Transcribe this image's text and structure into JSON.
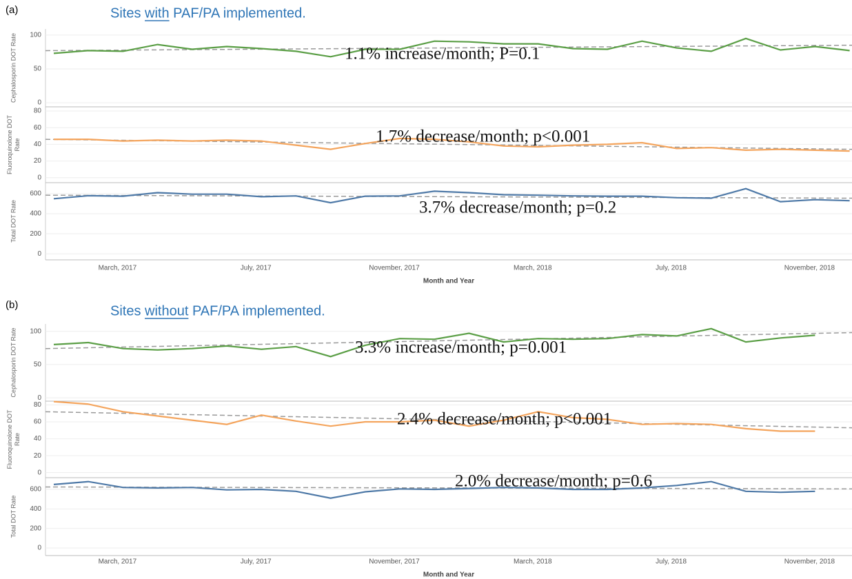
{
  "chart_data": [
    {
      "type": "line",
      "panel_label": "(a)",
      "title": "Sites with PAF/PA implemented.",
      "title_underline": "with",
      "xlabel": "Month and Year",
      "categories": [
        null,
        null,
        "March, 2017",
        null,
        null,
        null,
        "July, 2017",
        null,
        null,
        null,
        "November, 2017",
        null,
        null,
        null,
        "March, 2018",
        null,
        null,
        null,
        "July, 2018",
        null,
        null,
        null,
        "November, 2018",
        null
      ],
      "subplots": [
        {
          "ylabel_lines": [
            "Cephalosporin DOT Rate"
          ],
          "ylim": [
            -6,
            109
          ],
          "yticks": [
            0,
            50,
            100
          ],
          "color": "#5a9e45",
          "values": [
            73,
            77,
            76,
            86,
            79,
            83,
            80,
            76,
            68,
            79,
            79,
            91,
            90,
            87,
            87,
            80,
            79,
            91,
            81,
            76,
            95,
            78,
            83,
            77
          ],
          "trend": [
            77,
            85
          ],
          "annotation": "1.1% increase/month; P=0.1"
        },
        {
          "ylabel_lines": [
            "Fluoroquinolone DOT",
            "Rate"
          ],
          "ylim": [
            -6,
            85
          ],
          "yticks": [
            0,
            20,
            40,
            60,
            80
          ],
          "color": "#f4a45c",
          "values": [
            46,
            46,
            44,
            45,
            44,
            45,
            44,
            39,
            34,
            41,
            47,
            46,
            43,
            38,
            37,
            39,
            40,
            42,
            35,
            36,
            33,
            34,
            33,
            32
          ],
          "trend": [
            46,
            34
          ],
          "annotation": "1.7% decrease/month; p<0.001"
        },
        {
          "ylabel_lines": [
            "Total DOT Rate"
          ],
          "ylim": [
            -60,
            710
          ],
          "yticks": [
            0,
            200,
            400,
            600
          ],
          "color": "#4e79a7",
          "values": [
            550,
            580,
            575,
            610,
            595,
            595,
            570,
            578,
            510,
            575,
            578,
            625,
            610,
            590,
            585,
            578,
            575,
            575,
            560,
            555,
            650,
            520,
            540,
            530
          ],
          "trend": [
            585,
            555
          ],
          "annotation": "3.7% decrease/month; p=0.2"
        }
      ]
    },
    {
      "type": "line",
      "panel_label": "(b)",
      "title": "Sites without PAF/PA implemented.",
      "title_underline": "without",
      "xlabel": "Month and Year",
      "categories": [
        null,
        null,
        "March, 2017",
        null,
        null,
        null,
        "July, 2017",
        null,
        null,
        null,
        "November, 2017",
        null,
        null,
        null,
        "March, 2018",
        null,
        null,
        null,
        "July, 2018",
        null,
        null,
        null,
        "November, 2018",
        null
      ],
      "subplots": [
        {
          "ylabel_lines": [
            "Cephalosporin DOT Rate"
          ],
          "ylim": [
            -5,
            111
          ],
          "yticks": [
            0,
            50,
            100
          ],
          "color": "#5a9e45",
          "values": [
            80,
            83,
            74,
            72,
            74,
            78,
            73,
            77,
            62,
            79,
            89,
            88,
            97,
            84,
            89,
            88,
            89,
            95,
            93,
            104,
            84,
            90,
            94,
            null
          ],
          "trend": [
            74,
            98
          ],
          "annotation": "3.3% increase/month; p=0.001"
        },
        {
          "ylabel_lines": [
            "Fluoroquinolone DOT",
            "Rate"
          ],
          "ylim": [
            -6,
            84.5
          ],
          "yticks": [
            0,
            20,
            40,
            60,
            80
          ],
          "color": "#f4a45c",
          "values": [
            84,
            81,
            72,
            67,
            62,
            57,
            68,
            61,
            55,
            60,
            60,
            62,
            55,
            62,
            72,
            65,
            63,
            57,
            58,
            57,
            52,
            49,
            49,
            null
          ],
          "trend": [
            72,
            53
          ],
          "annotation": "2.4% decrease/month; p<0.001"
        },
        {
          "ylabel_lines": [
            "Total DOT Rate"
          ],
          "ylim": [
            -78,
            720
          ],
          "yticks": [
            0,
            200,
            400,
            600
          ],
          "color": "#4e79a7",
          "values": [
            650,
            680,
            620,
            615,
            620,
            595,
            600,
            580,
            510,
            575,
            605,
            600,
            610,
            620,
            615,
            600,
            600,
            615,
            640,
            680,
            580,
            570,
            580,
            null
          ],
          "trend": [
            625,
            605
          ],
          "annotation": "2.0% decrease/month; p=0.6"
        }
      ]
    }
  ]
}
